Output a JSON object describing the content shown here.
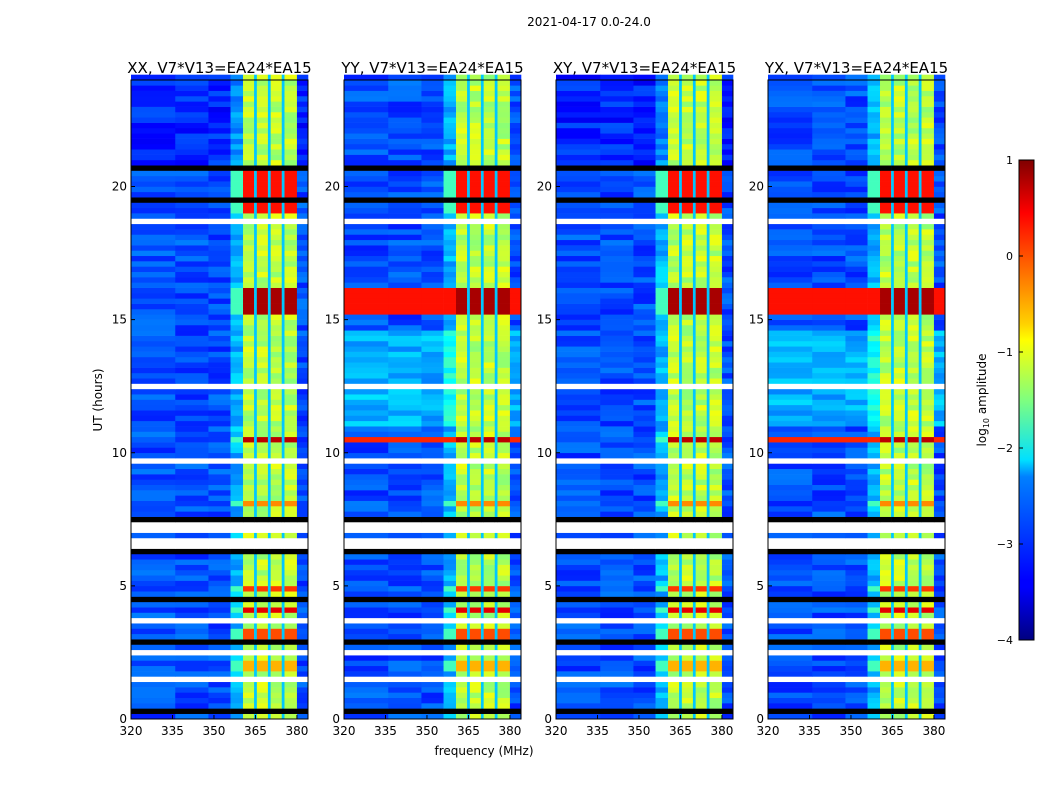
{
  "chart_data": {
    "type": "heatmap",
    "title": "2021-04-17 0.0-24.0",
    "xlabel": "frequency (MHz)",
    "ylabel": "UT (hours)",
    "xlim": [
      320,
      384
    ],
    "ylim": [
      0,
      24
    ],
    "xticks": [
      "320",
      "335",
      "350",
      "365",
      "380"
    ],
    "yticks": [
      "0",
      "5",
      "10",
      "15",
      "20"
    ],
    "panels": [
      {
        "name": "XX",
        "title": "XX, V7*V13=EA24*EA15",
        "rfi_full_width": false
      },
      {
        "name": "YY",
        "title": "YY, V7*V13=EA24*EA15",
        "rfi_full_width": true
      },
      {
        "name": "XY",
        "title": "XY, V7*V13=EA24*EA15",
        "rfi_full_width": false
      },
      {
        "name": "YX",
        "title": "YX, V7*V13=EA24*EA15",
        "rfi_full_width": true
      }
    ],
    "background_level": -3.0,
    "band": {
      "range_mhz": [
        360.5,
        380
      ],
      "level": -1.2,
      "gaps_mhz": [
        365,
        370,
        375
      ]
    },
    "rfi_hours": [
      {
        "range": [
          15.1,
          16.2
        ],
        "level": 0.8
      },
      {
        "range": [
          19.0,
          20.5
        ],
        "level": 0.3
      },
      {
        "range": [
          10.3,
          10.6
        ],
        "level": 0.7
      },
      {
        "range": [
          4.1,
          4.3
        ],
        "level": 0.5
      },
      {
        "range": [
          3.0,
          3.5
        ],
        "level": 0.0
      },
      {
        "range": [
          4.9,
          5.1
        ],
        "level": 0.1
      },
      {
        "range": [
          8.0,
          8.2
        ],
        "level": -0.3
      },
      {
        "range": [
          1.8,
          2.2
        ],
        "level": -0.5
      }
    ],
    "flagged_hours": [
      [
        6.5,
        6.9
      ],
      [
        7.1,
        7.35
      ],
      [
        2.45,
        2.65
      ],
      [
        0.8,
        0.9
      ],
      [
        1.5,
        1.55
      ],
      [
        9.6,
        9.7
      ],
      [
        11.7,
        11.8
      ],
      [
        12.4,
        12.5
      ],
      [
        13.7,
        13.8
      ],
      [
        14.5,
        14.6
      ],
      [
        16.7,
        16.8
      ],
      [
        17.9,
        18.0
      ],
      [
        18.6,
        18.7
      ],
      [
        7.8,
        7.85
      ],
      [
        5.4,
        5.45
      ],
      [
        3.7,
        3.75
      ]
    ],
    "dark_hours": [
      [
        23.5,
        23.6
      ],
      [
        20.6,
        20.7
      ],
      [
        19.4,
        19.5
      ],
      [
        16.3,
        16.4
      ],
      [
        13.0,
        13.05
      ],
      [
        7.5,
        7.6
      ],
      [
        6.3,
        6.35
      ],
      [
        4.5,
        4.55
      ],
      [
        2.9,
        2.95
      ],
      [
        0.3,
        0.35
      ]
    ],
    "colorbar": {
      "label": "log10 amplitude",
      "colormap": "jet",
      "range": [
        -4,
        1
      ],
      "ticks": [
        "1",
        "0",
        "−1",
        "−2",
        "−3",
        "−4"
      ]
    }
  }
}
